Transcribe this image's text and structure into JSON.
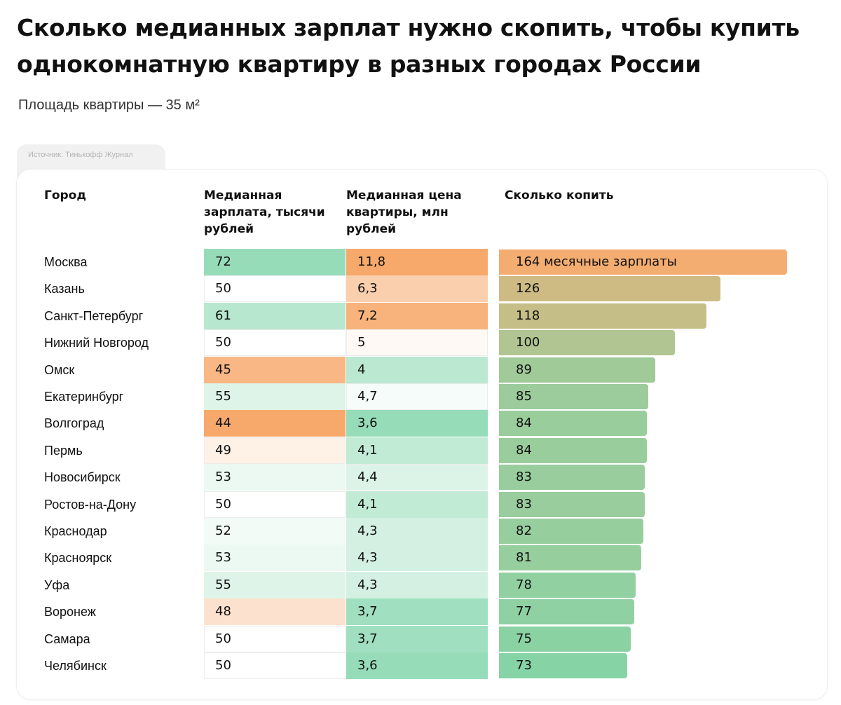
{
  "header": {
    "title": "Сколько медианных зарплат нужно скопить, чтобы купить однокомнатную квартиру в разных городах России",
    "subtitle": "Площадь квартиры — 35 м²",
    "source": "Источник: Тинькофф Журнал"
  },
  "columns": {
    "city": "Город",
    "salary": "Медианная зарплата, тысячи рублей",
    "price": "Медианная цена квартиры, млн рублей",
    "months": "Сколько копить"
  },
  "first_bar_suffix": " месячные зарплаты",
  "colors": {
    "orange": "#f6a96b",
    "green": "#97dcb9",
    "white": "#ffffff",
    "bar_top": "#f4ad70",
    "bar_bottom": "#86d4a6"
  },
  "chart_data": {
    "type": "table",
    "columns": [
      "Город",
      "Медианная зарплата, тысячи рублей",
      "Медианная цена квартиры, млн рублей",
      "Сколько копить"
    ],
    "rows": [
      {
        "city": "Москва",
        "salary": "72",
        "price": "11,8",
        "months": 164
      },
      {
        "city": "Казань",
        "salary": "50",
        "price": "6,3",
        "months": 126
      },
      {
        "city": "Санкт-Петербург",
        "salary": "61",
        "price": "7,2",
        "months": 118
      },
      {
        "city": "Нижний Новгород",
        "salary": "50",
        "price": "5",
        "months": 100
      },
      {
        "city": "Омск",
        "salary": "45",
        "price": "4",
        "months": 89
      },
      {
        "city": "Екатеринбург",
        "salary": "55",
        "price": "4,7",
        "months": 85
      },
      {
        "city": "Волгоград",
        "salary": "44",
        "price": "3,6",
        "months": 84
      },
      {
        "city": "Пермь",
        "salary": "49",
        "price": "4,1",
        "months": 84
      },
      {
        "city": "Новосибирск",
        "salary": "53",
        "price": "4,4",
        "months": 83
      },
      {
        "city": "Ростов-на-Дону",
        "salary": "50",
        "price": "4,1",
        "months": 83
      },
      {
        "city": "Краснодар",
        "salary": "52",
        "price": "4,3",
        "months": 82
      },
      {
        "city": "Красноярск",
        "salary": "53",
        "price": "4,3",
        "months": 81
      },
      {
        "city": "Уфа",
        "salary": "55",
        "price": "4,3",
        "months": 78
      },
      {
        "city": "Воронеж",
        "salary": "48",
        "price": "3,7",
        "months": 77
      },
      {
        "city": "Самара",
        "salary": "50",
        "price": "3,7",
        "months": 75
      },
      {
        "city": "Челябинск",
        "salary": "50",
        "price": "3,6",
        "months": 73
      }
    ],
    "months_max": 164
  }
}
